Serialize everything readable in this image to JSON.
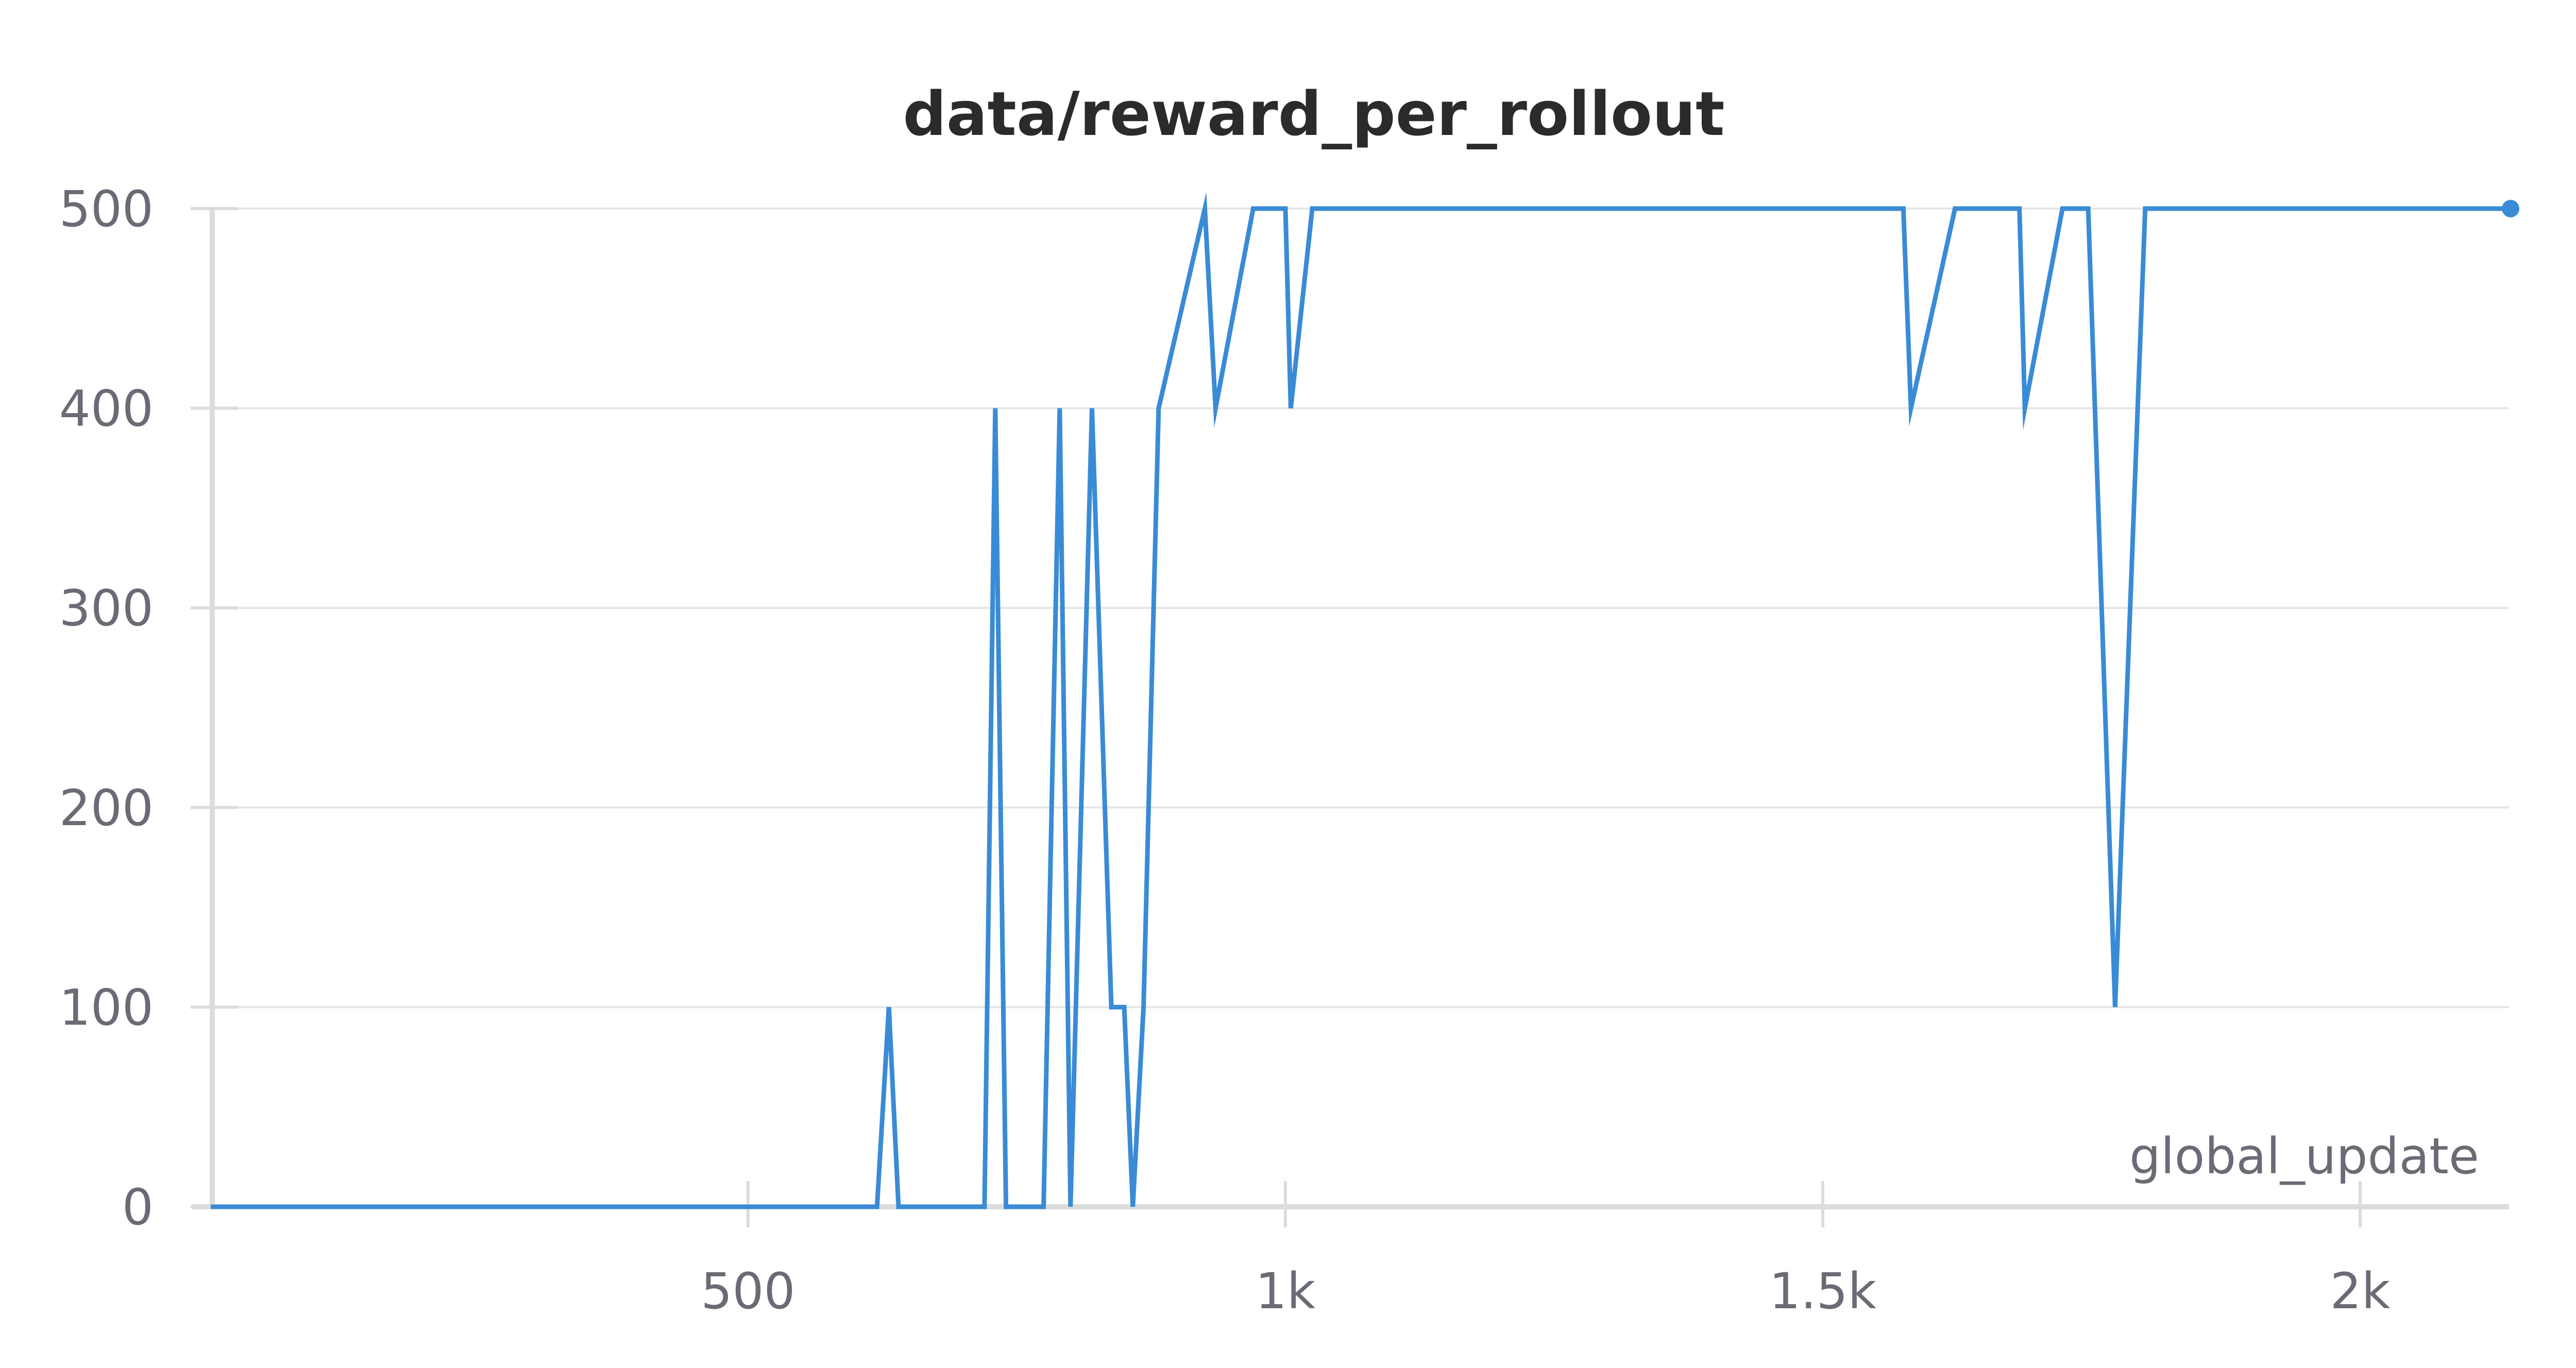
{
  "chart_data": {
    "type": "line",
    "title": "data/reward_per_rollout",
    "xlabel": "global_update",
    "ylabel": "",
    "xlim": [
      0,
      2140
    ],
    "ylim": [
      0,
      500
    ],
    "x_ticks": [
      500,
      1000,
      1500,
      2000
    ],
    "x_tick_labels": [
      "500",
      "1k",
      "1.5k",
      "2k"
    ],
    "y_ticks": [
      0,
      100,
      200,
      300,
      400,
      500
    ],
    "y_tick_labels": [
      "0",
      "100",
      "200",
      "300",
      "400",
      "500"
    ],
    "grid": true,
    "legend": "none",
    "colors": {
      "line": "#3a8bd6",
      "grid": "#e6e6e6",
      "axis": "#dcdcdc",
      "tick_text": "#6b6b76",
      "title": "#2b2b2b"
    },
    "series": [
      {
        "x": [
          0,
          620,
          631,
          640,
          720,
          730,
          740,
          775,
          790,
          800,
          820,
          838,
          850,
          858,
          868,
          882,
          925,
          935,
          970,
          1000,
          1005,
          1025,
          1054,
          1062,
          1575,
          1582,
          1623,
          1683,
          1688,
          1723,
          1747,
          1772,
          1800,
          1805,
          1812,
          2140
        ],
        "y": [
          0,
          0,
          100,
          0,
          0,
          400,
          0,
          0,
          400,
          0,
          400,
          100,
          100,
          0,
          100,
          400,
          500,
          400,
          500,
          500,
          400,
          500,
          500,
          500,
          500,
          400,
          500,
          500,
          400,
          500,
          500,
          100,
          500,
          500,
          500,
          500
        ]
      }
    ]
  }
}
